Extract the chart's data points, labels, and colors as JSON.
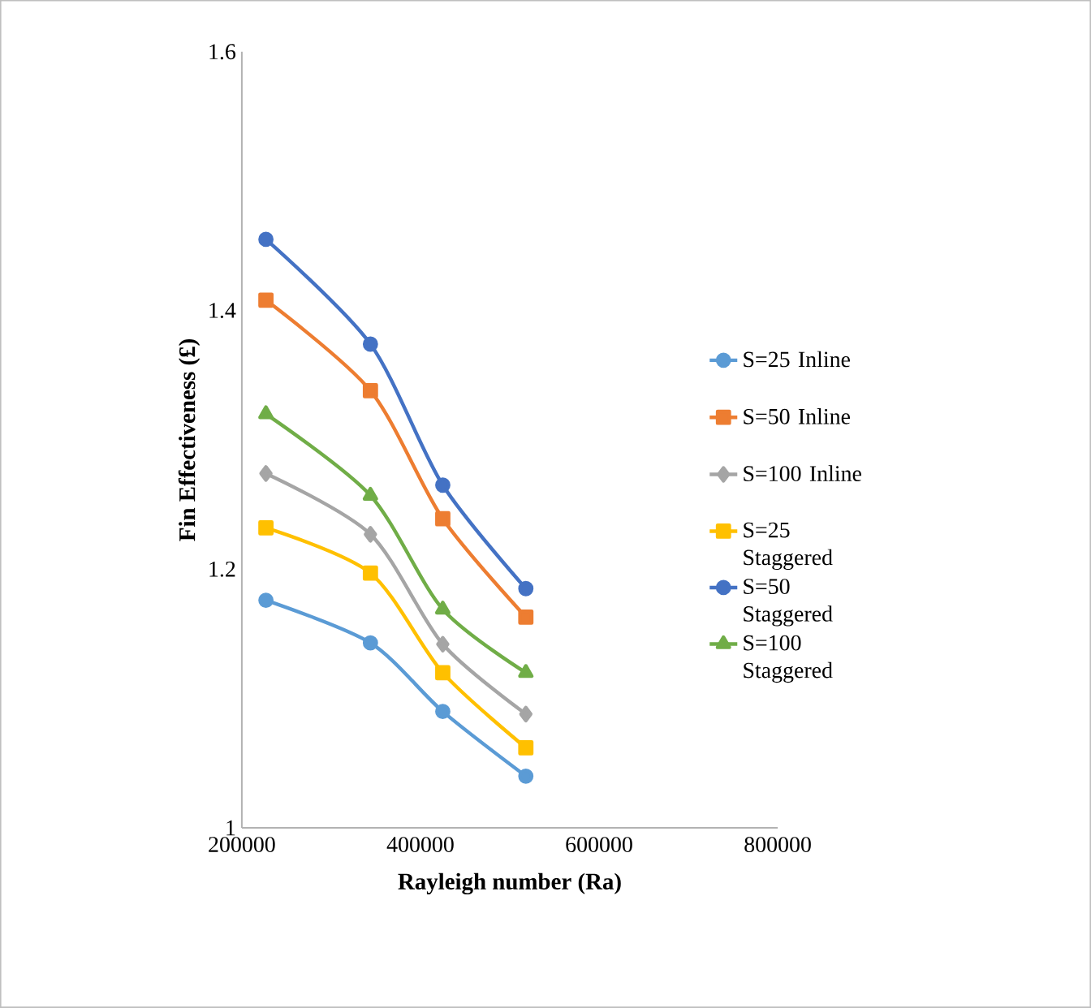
{
  "chart_data": {
    "type": "line",
    "xlabel": "Rayleigh number (Ra)",
    "ylabel": "Fin Effectiveness (£)",
    "x": [
      227000,
      344000,
      425000,
      518000
    ],
    "xlim": [
      200000,
      800000
    ],
    "xticks": [
      200000,
      400000,
      600000,
      800000
    ],
    "ylim": [
      1,
      1.6
    ],
    "yticks": [
      1,
      {
        "value": 1.2,
        "label": "1.2"
      },
      {
        "value": 1.4,
        "label": "1.4"
      },
      {
        "value": 1.6,
        "label": "1.6"
      }
    ],
    "grid": false,
    "legend": "right",
    "series": [
      {
        "name": "S=25 Inline",
        "color": "#5b9bd5",
        "marker": "circle",
        "values": [
          1.176,
          1.143,
          1.09,
          1.04
        ]
      },
      {
        "name": "S=50 Inline",
        "color": "#ed7d31",
        "marker": "square",
        "values": [
          1.408,
          1.338,
          1.239,
          1.163
        ]
      },
      {
        "name": "S=100 Inline",
        "color": "#a5a5a5",
        "marker": "diamond",
        "values": [
          1.274,
          1.227,
          1.142,
          1.088
        ]
      },
      {
        "name": "S=25 Staggered",
        "color": "#ffc000",
        "marker": "square",
        "values": [
          1.232,
          1.197,
          1.12,
          1.062
        ]
      },
      {
        "name": "S=50 Staggered",
        "color": "#4472c4",
        "marker": "circle",
        "values": [
          1.455,
          1.374,
          1.265,
          1.185
        ]
      },
      {
        "name": "S=100 Staggered",
        "color": "#70ad47",
        "marker": "triangle",
        "values": [
          1.32,
          1.257,
          1.169,
          1.12
        ]
      }
    ]
  }
}
